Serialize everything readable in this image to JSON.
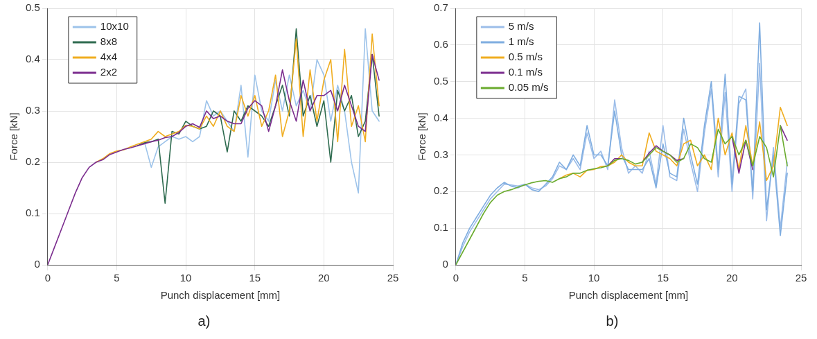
{
  "chart_data": [
    {
      "type": "line",
      "xlabel": "Punch displacement [mm]",
      "ylabel": "Force [kN]",
      "annotations": [
        "a)"
      ],
      "xlim": [
        0,
        25
      ],
      "ylim": [
        0,
        0.5
      ],
      "xticks": [
        0,
        5,
        10,
        15,
        20,
        25
      ],
      "yticks": [
        0,
        0.1,
        0.2,
        0.3,
        0.4,
        0.5
      ],
      "grid": true,
      "legend": "top left",
      "marker": "none",
      "x": [
        0,
        0.5,
        1,
        1.5,
        2,
        2.5,
        3,
        3.5,
        4,
        4.5,
        5,
        5.5,
        6,
        6.5,
        7,
        7.5,
        8,
        8.5,
        9,
        9.5,
        10,
        10.5,
        11,
        11.5,
        12,
        12.5,
        13,
        13.5,
        14,
        14.5,
        15,
        15.5,
        16,
        16.5,
        17,
        17.5,
        18,
        18.5,
        19,
        19.5,
        20,
        20.5,
        21,
        21.5,
        22,
        22.5,
        23,
        23.5,
        24
      ],
      "series": [
        {
          "name": "10x10",
          "color": "#9dc3ea",
          "values": [
            null,
            null,
            null,
            null,
            null,
            null,
            null,
            null,
            null,
            null,
            null,
            null,
            null,
            0.232,
            0.24,
            0.19,
            0.23,
            0.24,
            0.25,
            0.245,
            0.25,
            0.24,
            0.25,
            0.32,
            0.29,
            0.3,
            0.28,
            0.26,
            0.35,
            0.21,
            0.37,
            0.3,
            0.28,
            0.36,
            0.3,
            0.37,
            0.31,
            0.34,
            0.3,
            0.4,
            0.37,
            0.28,
            0.35,
            0.3,
            0.2,
            0.14,
            0.46,
            0.3,
            0.28
          ]
        },
        {
          "name": "8x8",
          "color": "#2e6b4f",
          "values": [
            null,
            null,
            null,
            null,
            null,
            null,
            null,
            null,
            null,
            null,
            null,
            null,
            null,
            0.232,
            0.238,
            0.24,
            0.245,
            0.12,
            0.26,
            0.255,
            0.28,
            0.27,
            0.265,
            0.27,
            0.3,
            0.29,
            0.22,
            0.3,
            0.28,
            0.31,
            0.3,
            0.29,
            0.27,
            0.31,
            0.35,
            0.29,
            0.46,
            0.29,
            0.33,
            0.27,
            0.32,
            0.2,
            0.34,
            0.3,
            0.33,
            0.25,
            0.28,
            0.41,
            0.29
          ]
        },
        {
          "name": "4x4",
          "color": "#f0ad20",
          "values": [
            null,
            null,
            null,
            null,
            null,
            null,
            null,
            0.2,
            0.207,
            0.217,
            0.222,
            0.224,
            0.23,
            0.235,
            0.24,
            0.245,
            0.26,
            0.25,
            0.255,
            0.26,
            0.272,
            0.27,
            0.265,
            0.29,
            0.27,
            0.3,
            0.27,
            0.26,
            0.33,
            0.29,
            0.33,
            0.27,
            0.3,
            0.37,
            0.25,
            0.3,
            0.44,
            0.25,
            0.38,
            0.28,
            0.36,
            0.4,
            0.24,
            0.42,
            0.27,
            0.31,
            0.24,
            0.45,
            0.31
          ]
        },
        {
          "name": "2x2",
          "color": "#7b2d8e",
          "values": [
            0,
            0.035,
            0.07,
            0.105,
            0.14,
            0.17,
            0.19,
            0.2,
            0.205,
            0.215,
            0.22,
            0.225,
            0.228,
            0.232,
            0.236,
            0.24,
            0.243,
            0.248,
            0.25,
            0.258,
            0.27,
            0.275,
            0.268,
            0.3,
            0.285,
            0.29,
            0.28,
            0.275,
            0.275,
            0.305,
            0.32,
            0.31,
            0.26,
            0.31,
            0.38,
            0.32,
            0.28,
            0.36,
            0.3,
            0.33,
            0.33,
            0.34,
            0.3,
            0.35,
            0.31,
            0.27,
            0.26,
            0.41,
            0.36
          ]
        }
      ]
    },
    {
      "type": "line",
      "xlabel": "Punch displacement [mm]",
      "ylabel": "Force [kN]",
      "annotations": [
        "b)"
      ],
      "xlim": [
        0,
        25
      ],
      "ylim": [
        0,
        0.7
      ],
      "xticks": [
        0,
        5,
        10,
        15,
        20,
        25
      ],
      "yticks": [
        0,
        0.1,
        0.2,
        0.3,
        0.4,
        0.5,
        0.6,
        0.7
      ],
      "grid": true,
      "legend": "top left",
      "marker": "none",
      "x": [
        0,
        0.5,
        1,
        1.5,
        2,
        2.5,
        3,
        3.5,
        4,
        4.5,
        5,
        5.5,
        6,
        6.5,
        7,
        7.5,
        8,
        8.5,
        9,
        9.5,
        10,
        10.5,
        11,
        11.5,
        12,
        12.5,
        13,
        13.5,
        14,
        14.5,
        15,
        15.5,
        16,
        16.5,
        17,
        17.5,
        18,
        18.5,
        19,
        19.5,
        20,
        20.5,
        21,
        21.5,
        22,
        22.5,
        23,
        23.5,
        24
      ],
      "series": [
        {
          "name": "5 m/s",
          "color": "#9cbde9",
          "values": [
            0,
            0.05,
            0.09,
            0.12,
            0.15,
            0.18,
            0.2,
            0.22,
            0.218,
            0.215,
            0.22,
            0.21,
            0.205,
            0.215,
            0.235,
            0.27,
            0.26,
            0.29,
            0.26,
            0.36,
            0.29,
            0.31,
            0.26,
            0.45,
            0.32,
            0.25,
            0.27,
            0.25,
            0.31,
            0.22,
            0.38,
            0.24,
            0.23,
            0.37,
            0.28,
            0.2,
            0.36,
            0.48,
            0.24,
            0.47,
            0.2,
            0.44,
            0.48,
            0.18,
            0.55,
            0.12,
            0.32,
            0.1,
            0.28
          ]
        },
        {
          "name": "1 m/s",
          "color": "#7fade0",
          "values": [
            0,
            0.06,
            0.1,
            0.13,
            0.16,
            0.19,
            0.21,
            0.225,
            0.215,
            0.21,
            0.22,
            0.205,
            0.2,
            0.22,
            0.24,
            0.28,
            0.26,
            0.3,
            0.27,
            0.38,
            0.3,
            0.3,
            0.27,
            0.42,
            0.3,
            0.26,
            0.26,
            0.26,
            0.29,
            0.21,
            0.33,
            0.25,
            0.24,
            0.4,
            0.3,
            0.22,
            0.38,
            0.5,
            0.26,
            0.52,
            0.22,
            0.46,
            0.45,
            0.2,
            0.66,
            0.15,
            0.3,
            0.08,
            0.25
          ]
        },
        {
          "name": "0.5 m/s",
          "color": "#f0ad20",
          "values": [
            null,
            null,
            null,
            null,
            null,
            null,
            null,
            null,
            null,
            null,
            null,
            null,
            null,
            null,
            null,
            0.235,
            0.245,
            0.25,
            0.24,
            0.258,
            0.26,
            0.268,
            0.27,
            0.28,
            0.3,
            0.28,
            0.27,
            0.27,
            0.36,
            0.31,
            0.3,
            0.29,
            0.27,
            0.33,
            0.34,
            0.27,
            0.3,
            0.26,
            0.4,
            0.3,
            0.36,
            0.26,
            0.38,
            0.27,
            0.39,
            0.23,
            0.27,
            0.43,
            0.38
          ]
        },
        {
          "name": "0.1 m/s",
          "color": "#7b2d8e",
          "values": [
            null,
            null,
            null,
            null,
            null,
            null,
            null,
            null,
            null,
            null,
            null,
            null,
            null,
            null,
            null,
            null,
            null,
            null,
            null,
            null,
            null,
            null,
            0.27,
            0.29,
            0.29,
            null,
            null,
            0.28,
            0.305,
            0.325,
            0.31,
            0.3,
            0.285,
            0.29,
            null,
            null,
            null,
            null,
            null,
            null,
            0.35,
            0.25,
            0.34,
            0.26,
            null,
            null,
            null,
            0.38,
            0.34
          ]
        },
        {
          "name": "0.05 m/s",
          "color": "#6aab2e",
          "values": [
            0,
            0.035,
            0.07,
            0.105,
            0.14,
            0.17,
            0.19,
            0.2,
            0.205,
            0.212,
            0.218,
            0.224,
            0.228,
            0.23,
            0.225,
            0.235,
            0.24,
            0.25,
            0.25,
            0.258,
            0.262,
            0.265,
            0.27,
            0.285,
            0.29,
            0.285,
            0.275,
            0.28,
            0.3,
            0.32,
            0.31,
            0.3,
            0.28,
            0.29,
            0.33,
            0.32,
            0.29,
            0.28,
            0.37,
            0.33,
            0.35,
            0.3,
            0.34,
            0.27,
            0.35,
            0.32,
            0.24,
            0.38,
            0.27
          ]
        }
      ]
    }
  ]
}
